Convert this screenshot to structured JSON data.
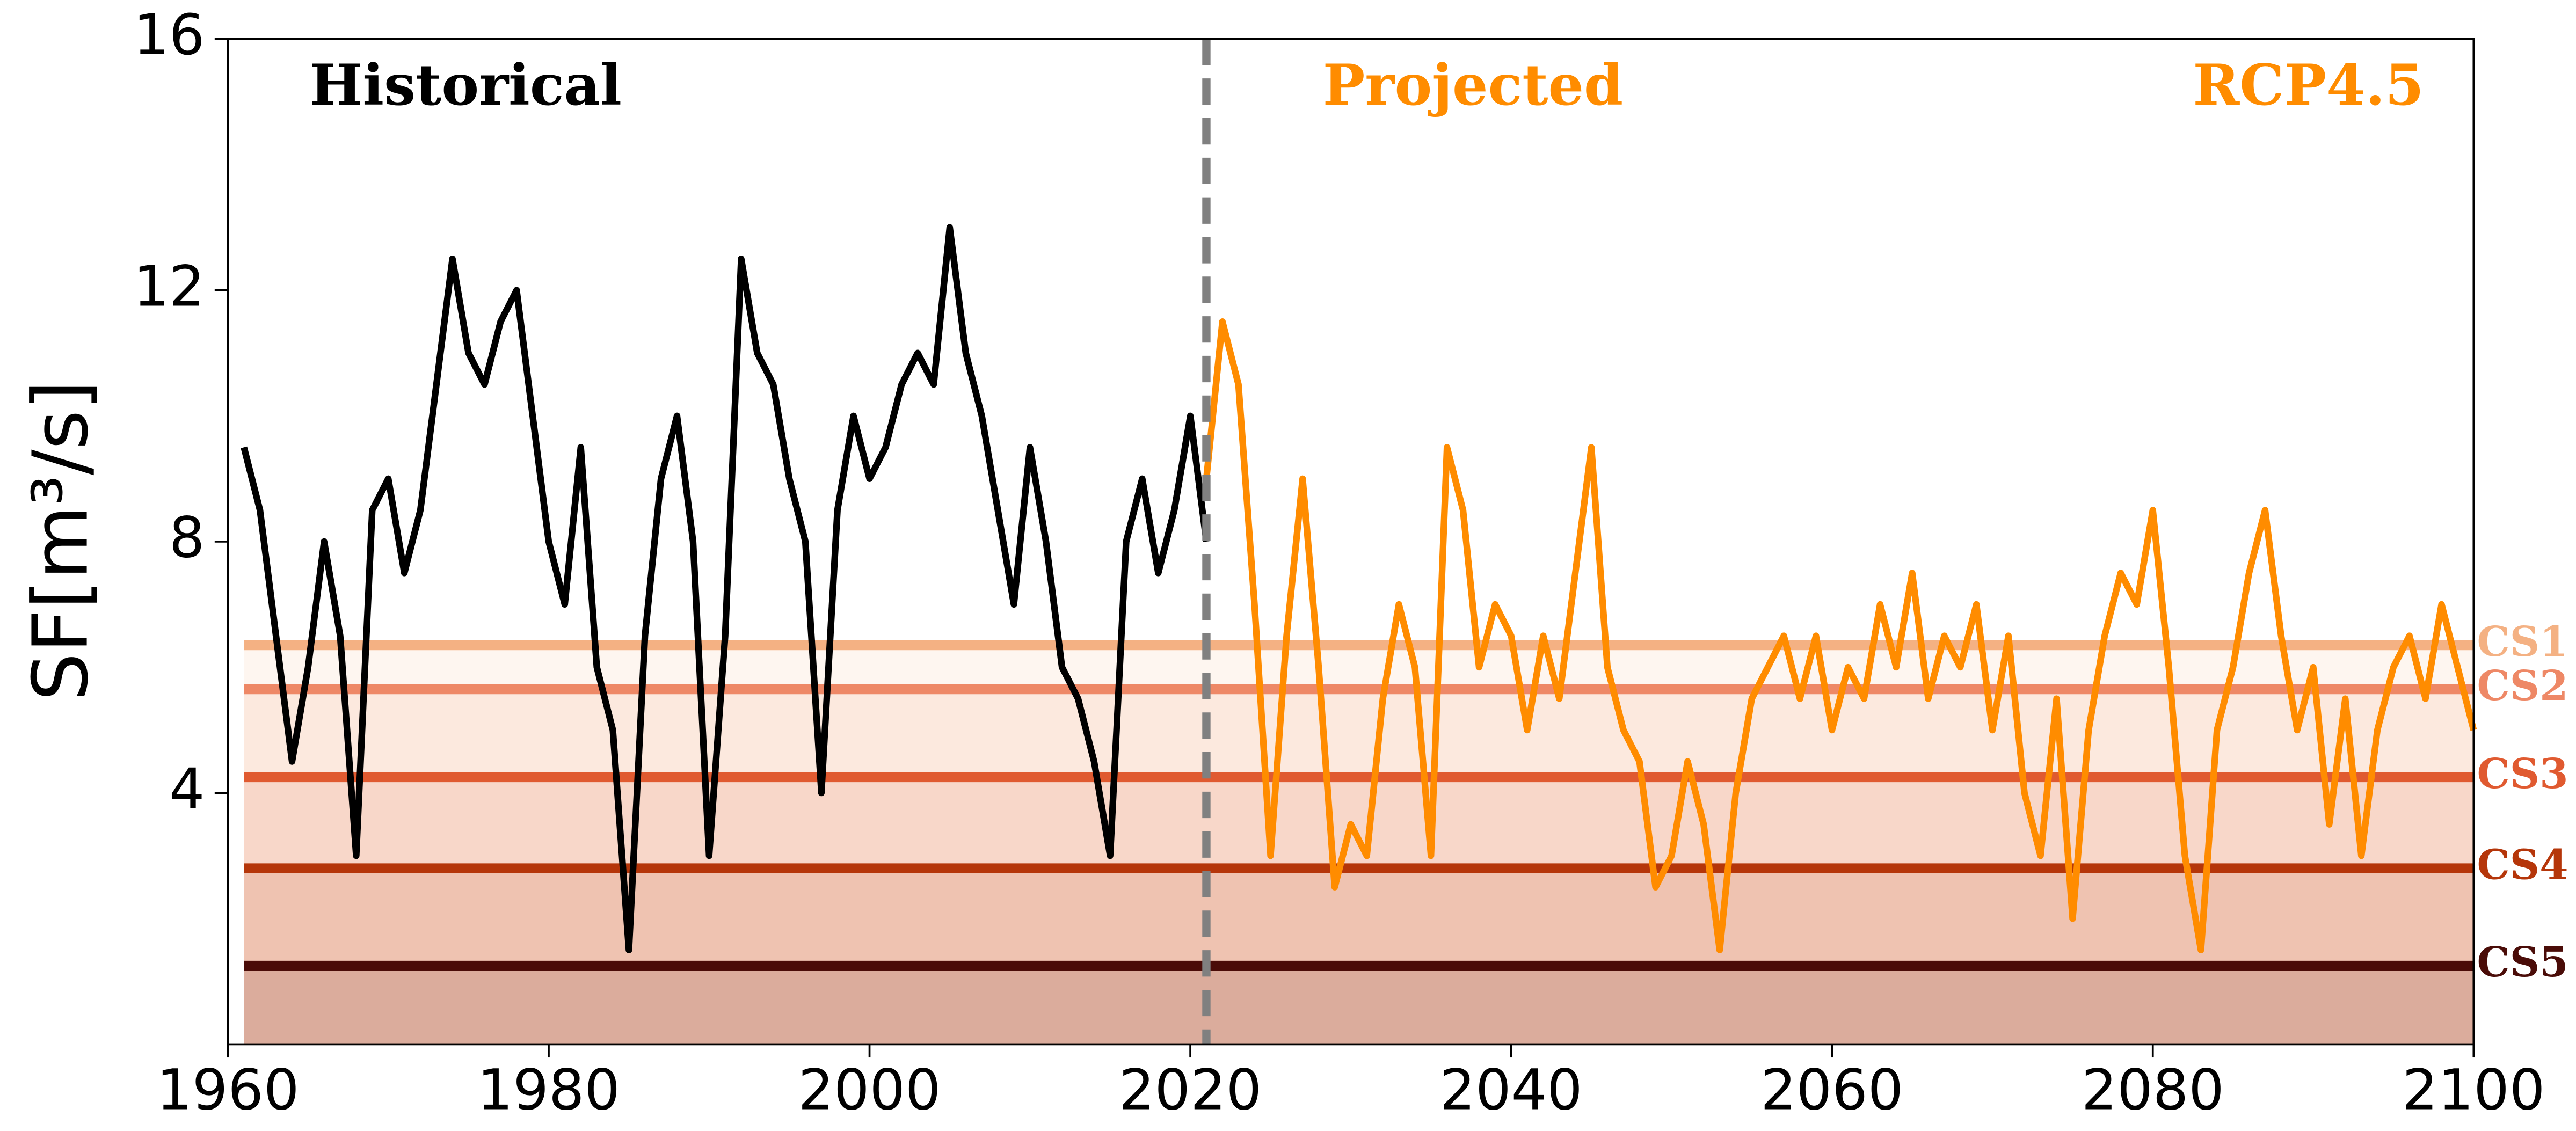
{
  "chart_data": {
    "type": "line",
    "y_label": "SF[m³/s]",
    "annotation": "RCP4.5",
    "annotation_color": "#ff8c00",
    "xlim": [
      1960,
      2100
    ],
    "xticks": [
      1960,
      1980,
      2000,
      2020,
      2040,
      2060,
      2080,
      2100
    ],
    "ylim": [
      0,
      16
    ],
    "yticks": [
      4,
      8,
      12,
      16
    ],
    "divider_x": 2021,
    "divider_color": "#808080",
    "series": [
      {
        "name": "Historical",
        "color": "#000000",
        "x": [
          1961,
          1962,
          1963,
          1964,
          1965,
          1966,
          1967,
          1968,
          1969,
          1970,
          1971,
          1972,
          1973,
          1974,
          1975,
          1976,
          1977,
          1978,
          1979,
          1980,
          1981,
          1982,
          1983,
          1984,
          1985,
          1986,
          1987,
          1988,
          1989,
          1990,
          1991,
          1992,
          1993,
          1994,
          1995,
          1996,
          1997,
          1998,
          1999,
          2000,
          2001,
          2002,
          2003,
          2004,
          2005,
          2006,
          2007,
          2008,
          2009,
          2010,
          2011,
          2012,
          2013,
          2014,
          2015,
          2016,
          2017,
          2018,
          2019,
          2020,
          2021
        ],
        "values": [
          9.5,
          8.5,
          6.5,
          4.5,
          6.0,
          8.0,
          6.5,
          3.0,
          8.5,
          9.0,
          7.5,
          8.5,
          10.5,
          12.5,
          11.0,
          10.5,
          11.5,
          12.0,
          10.0,
          8.0,
          7.0,
          9.5,
          6.0,
          5.0,
          1.5,
          6.5,
          9.0,
          10.0,
          8.0,
          3.0,
          6.5,
          12.5,
          11.0,
          10.5,
          9.0,
          8.0,
          4.0,
          8.5,
          10.0,
          9.0,
          9.5,
          10.5,
          11.0,
          10.5,
          13.0,
          11.0,
          10.0,
          8.5,
          7.0,
          9.5,
          8.0,
          6.0,
          5.5,
          4.5,
          3.0,
          8.0,
          9.0,
          7.5,
          8.5,
          10.0,
          8.0
        ]
      },
      {
        "name": "Projected",
        "color": "#ff8c00",
        "x": [
          2021,
          2022,
          2023,
          2024,
          2025,
          2026,
          2027,
          2028,
          2029,
          2030,
          2031,
          2032,
          2033,
          2034,
          2035,
          2036,
          2037,
          2038,
          2039,
          2040,
          2041,
          2042,
          2043,
          2044,
          2045,
          2046,
          2047,
          2048,
          2049,
          2050,
          2051,
          2052,
          2053,
          2054,
          2055,
          2056,
          2057,
          2058,
          2059,
          2060,
          2061,
          2062,
          2063,
          2064,
          2065,
          2066,
          2067,
          2068,
          2069,
          2070,
          2071,
          2072,
          2073,
          2074,
          2075,
          2076,
          2077,
          2078,
          2079,
          2080,
          2081,
          2082,
          2083,
          2084,
          2085,
          2086,
          2087,
          2088,
          2089,
          2090,
          2091,
          2092,
          2093,
          2094,
          2095,
          2096,
          2097,
          2098,
          2099,
          2100
        ],
        "values": [
          9.0,
          11.5,
          10.5,
          7.0,
          3.0,
          6.5,
          9.0,
          6.0,
          2.5,
          3.5,
          3.0,
          5.5,
          7.0,
          6.0,
          3.0,
          9.5,
          8.5,
          6.0,
          7.0,
          6.5,
          5.0,
          6.5,
          5.5,
          7.5,
          9.5,
          6.0,
          5.0,
          4.5,
          2.5,
          3.0,
          4.5,
          3.5,
          1.5,
          4.0,
          5.5,
          6.0,
          6.5,
          5.5,
          6.5,
          5.0,
          6.0,
          5.5,
          7.0,
          6.0,
          7.5,
          5.5,
          6.5,
          6.0,
          7.0,
          5.0,
          6.5,
          4.0,
          3.0,
          5.5,
          2.0,
          5.0,
          6.5,
          7.5,
          7.0,
          8.5,
          6.0,
          3.0,
          1.5,
          5.0,
          6.0,
          7.5,
          8.5,
          6.5,
          5.0,
          6.0,
          3.5,
          5.5,
          3.0,
          5.0,
          6.0,
          6.5,
          5.5,
          7.0,
          6.0,
          5.0
        ]
      }
    ],
    "thresholds": [
      {
        "name": "CS1",
        "value": 6.35,
        "color": "#f4b183"
      },
      {
        "name": "CS2",
        "value": 5.65,
        "color": "#ee8866"
      },
      {
        "name": "CS3",
        "value": 4.25,
        "color": "#e05a30"
      },
      {
        "name": "CS4",
        "value": 2.8,
        "color": "#b5360a"
      },
      {
        "name": "CS5",
        "value": 1.25,
        "color": "#4a0c08"
      }
    ]
  }
}
